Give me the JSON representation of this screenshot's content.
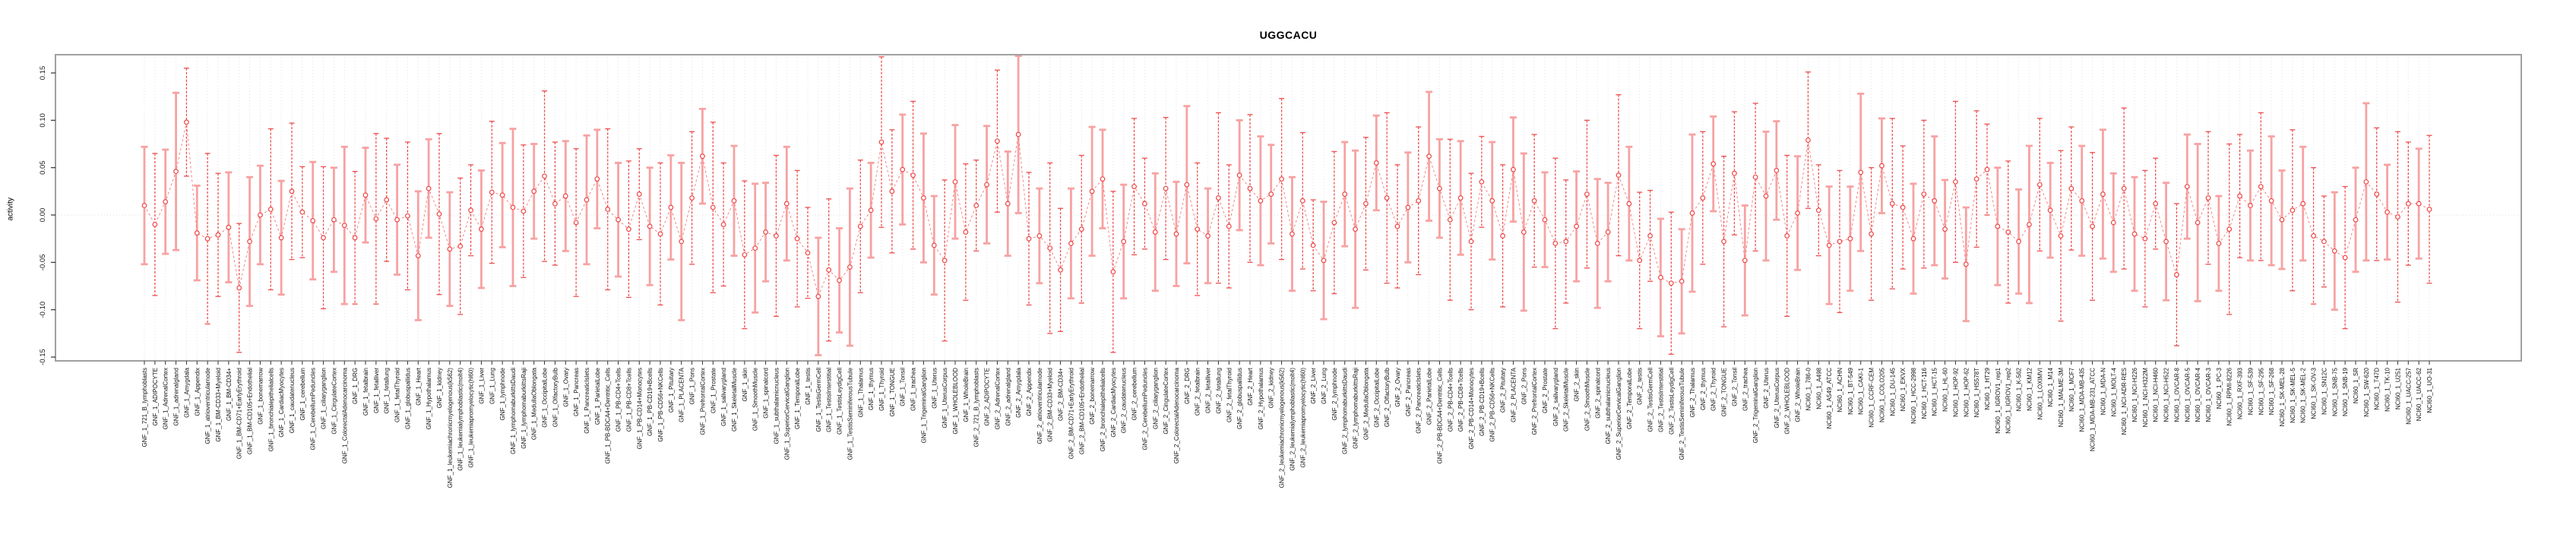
{
  "chart_data": {
    "type": "line",
    "title": "UGGCACU",
    "xlabel": "",
    "ylabel": "activity",
    "ylim": [
      -0.155,
      0.157
    ],
    "yticks": [
      -0.15,
      -0.1,
      -0.05,
      0.0,
      0.05,
      0.1,
      0.15
    ],
    "ytick_labels": [
      "-0.15",
      "-0.10",
      "-0.05",
      "0.00",
      "0.05",
      "0.10",
      "0.15"
    ],
    "grid": "vertical dotted line per category, dotted horizontal zero line",
    "legend": "none",
    "marker": "open-circle",
    "line_style": "dashed",
    "point_color": "#ef4747",
    "line_color": "#f27878",
    "errorbar_colors": {
      "dark": "#ee4f4f",
      "light": "#f7a2a2"
    },
    "errorbar_style_cycle": [
      1,
      0,
      1,
      1,
      0,
      1,
      0,
      0
    ],
    "categories": [
      "GNF_1_721_B_lymphoblasts",
      "GNF_1_ADIPOCYTE",
      "GNF_1_AdrenalCortex",
      "GNF_1_adrenalgland",
      "GNF_1_Amygdala",
      "GNF_1_Appendix",
      "GNF_1_atrioventricularnode",
      "GNF_1_BM-CD33+Myeloid",
      "GNF_1_BM-CD34+",
      "GNF_1_BM-CD71+EarlyErythroid",
      "GNF_1_BM-CD105+Endothelial",
      "GNF_1_bonemarrow",
      "GNF_1_bronchialepithelialcells",
      "GNF_1_CardiacMyocytes",
      "GNF_1_caudatenucleus",
      "GNF_1_cerebellum",
      "GNF_1_CerebellumPeduncles",
      "GNF_1_ciliaryganglion",
      "GNF_1_CingulateCortex",
      "GNF_1_ColorectalAdenocarcinoma",
      "GNF_1_DRG",
      "GNF_1_fetalbrain",
      "GNF_1_fetalliver",
      "GNF_1_fetallung",
      "GNF_1_fetalThyroid",
      "GNF_1_globuspallidus",
      "GNF_1_Heart",
      "GNF_1_Hypothalamus",
      "GNF_1_kidney",
      "GNF_1_leukemiachronicmyelogenous(k562)",
      "GNF_1_leukemialymphoblastic(molt4)",
      "GNF_1_leukemiapromyelocytic(hl60)",
      "GNF_1_Liver",
      "GNF_1_Lung",
      "GNF_1_lymphnode",
      "GNF_1_lymphomaburkittsDaudi",
      "GNF_1_lymphomaburkittsRaji",
      "GNF_1_MedullaOblongata",
      "GNF_1_OccipitalLobe",
      "GNF_1_OlfactoryBulb",
      "GNF_1_Ovary",
      "GNF_1_Pancreas",
      "GNF_1_PancreaticIslets",
      "GNF_1_ParietalLobe",
      "GNF_1_PB-BDCA4+Dentritic_Cells",
      "GNF_1_PB-CD4+Tcells",
      "GNF_1_PB-CD8+Tcells",
      "GNF_1_PB-CD14+Monocytes",
      "GNF_1_PB-CD19+Bcells",
      "GNF_1_PB-CD56+NKCells",
      "GNF_1_Pituitary",
      "GNF_1_PLACENTA",
      "GNF_1_Pons",
      "GNF_1_PrefrontalCortex",
      "GNF_1_Prostate",
      "GNF_1_salivarygland",
      "GNF_1_SkeletalMuscle",
      "GNF_1_skin",
      "GNF_1_SmoothMuscle",
      "GNF_1_spinalcord",
      "GNF_1_subthalamicnucleus",
      "GNF_1_SuperiorCervicalGanglion",
      "GNF_1_TemporalLobe",
      "GNF_1_testis",
      "GNF_1_TestisGermCell",
      "GNF_1_TestisInterstitial",
      "GNF_1_TestisLeydigCell",
      "GNF_1_TestisSeminiferousTubule",
      "GNF_1_Thalamus",
      "GNF_1_thymus",
      "GNF_1_Thyroid",
      "GNF_1_TONGUE",
      "GNF_1_Tonsil",
      "GNF_1_trachea",
      "GNF_1_TrigeminalGanglion",
      "GNF_1_Uterus",
      "GNF_1_UterusCorpus",
      "GNF_1_WHOLEBLOOD",
      "GNF_1_WholeBrain",
      "GNF_2_721_B_lymphoblasts",
      "GNF_2_ADIPOCYTE",
      "GNF_2_AdrenalCortex",
      "GNF_2_adrenalgland",
      "GNF_2_Amygdala",
      "GNF_2_Appendix",
      "GNF_2_atrioventricularnode",
      "GNF_2_BM-CD33+Myeloid",
      "GNF_2_BM-CD34+",
      "GNF_2_BM-CD71+EarlyErythroid",
      "GNF_2_BM-CD105+Endothelial",
      "GNF_2_bonemarrow",
      "GNF_2_bronchialepithelialcells",
      "GNF_2_CardiacMyocytes",
      "GNF_2_caudatenucleus",
      "GNF_2_cerebellum",
      "GNF_2_CerebellumPeduncles",
      "GNF_2_ciliaryganglion",
      "GNF_2_CingulateCortex",
      "GNF_2_ColorectalAdenocarcinoma",
      "GNF_2_DRG",
      "GNF_2_fetalbrain",
      "GNF_2_fetalliver",
      "GNF_2_fetallung",
      "GNF_2_fetalThyroid",
      "GNF_2_globuspallidus",
      "GNF_2_Heart",
      "GNF_2_Hypothalamus",
      "GNF_2_kidney",
      "GNF_2_leukemiachronicmyelogenous(k562)",
      "GNF_2_leukemialymphoblastic(molt4)",
      "GNF_2_leukemiapromyelocytic(hl60)",
      "GNF_2_Liver",
      "GNF_2_Lung",
      "GNF_2_lymphnode",
      "GNF_2_lymphomaburkittsDaudi",
      "GNF_2_lymphomaburkittsRaji",
      "GNF_2_MedullaOblongata",
      "GNF_2_OccipitalLobe",
      "GNF_2_OlfactoryBulb",
      "GNF_2_Ovary",
      "GNF_2_Pancreas",
      "GNF_2_PancreaticIslets",
      "GNF_2_ParietalLobe",
      "GNF_2_PB-BDCA4+Dentritic_Cells",
      "GNF_2_PB-CD4+Tcells",
      "GNF_2_PB-CD8+Tcells",
      "GNF_2_PB-CD14+Monocytes",
      "GNF_2_PB-CD19+Bcells",
      "GNF_2_PB-CD56+NKCells",
      "GNF_2_Pituitary",
      "GNF_2_PLACENTA",
      "GNF_2_Pons",
      "GNF_2_PrefrontalCortex",
      "GNF_2_Prostate",
      "GNF_2_salivarygland",
      "GNF_2_SkeletalMuscle",
      "GNF_2_skin",
      "GNF_2_SmoothMuscle",
      "GNF_2_spinalcord",
      "GNF_2_subthalamicnucleus",
      "GNF_2_SuperiorCervicalGanglion",
      "GNF_2_TemporalLobe",
      "GNF_2_testis",
      "GNF_2_TestisGermCell",
      "GNF_2_TestisInterstitial",
      "GNF_2_TestisLeydigCell",
      "GNF_2_TestisSeminiferousTubule",
      "GNF_2_Thalamus",
      "GNF_2_thymus",
      "GNF_2_Thyroid",
      "GNF_2_TONGUE",
      "GNF_2_Tonsil",
      "GNF_2_trachea",
      "GNF_2_TrigeminalGanglion",
      "GNF_2_Uterus",
      "GNF_2_UterusCorpus",
      "GNF_2_WHOLEBLOOD",
      "GNF_2_WholeBrain",
      "NCI60_1_786-0",
      "NCI60_1_A498",
      "NCI60_1_A549_ATCC",
      "NCI60_1_ACHN",
      "NCI60_1_BT-549",
      "NCI60_1_CAKI-1",
      "NCI60_1_CCRF-CEM",
      "NCI60_1_COLO205",
      "NCI60_1_DU-145",
      "NCI60_1_EKVX",
      "NCI60_1_HCC-2998",
      "NCI60_1_HCT-116",
      "NCI60_1_HCT-15",
      "NCI60_1_HL-60",
      "NCI60_1_HOP-92",
      "NCI60_1_HOP-62",
      "NCI60_1_HS578T",
      "NCI60_1_HT29",
      "NCI60_1_IGROV1_rep1",
      "NCI60_1_IGROV1_rep2",
      "NCI60_1_K-562",
      "NCI60_1_KM12",
      "NCI60_1_LOXIMVI",
      "NCI60_1_M14",
      "NCI60_1_MALME-3M",
      "NCI60_1_MCF7",
      "NCI60_1_MDA-MB-435",
      "NCI60_1_MDA-MB-231_ATCC",
      "NCI60_1_MDA-N",
      "NCI60_1_MOLT-4",
      "NCI60_1_NCI-ADR-RES",
      "NCI60_1_NCI-H226",
      "NCI60_1_NCI-H322M",
      "NCI60_1_NCI-H460",
      "NCI60_1_NCI-H522",
      "NCI60_1_OVCAR-8",
      "NCI60_1_OVCAR-5",
      "NCI60_1_OVCAR-4",
      "NCI60_1_OVCAR-3",
      "NCI60_1_PC-3",
      "NCI60_1_RPMI-8226",
      "NCI60_1_RXF-393",
      "NCI60_1_SF-539",
      "NCI60_1_SF-295",
      "NCI60_1_SF-268",
      "NCI60_1_SK-MEL-28",
      "NCI60_1_SK-MEL-5",
      "NCI60_1_SK-MEL-2",
      "NCI60_1_SK-OV-3",
      "NCI60_1_SN12C",
      "NCI60_1_SNB-75",
      "NCI60_1_SNB-19",
      "NCI60_1_SR",
      "NCI60_1_SW-620",
      "NCI60_1_T47D",
      "NCI60_1_TK-10",
      "NCI60_1_U251",
      "NCI60_1_UACC-257",
      "NCI60_1_UACC-62",
      "NCI60_1_UO-31"
    ],
    "series": [
      {
        "name": "activity",
        "values": [
          0.01,
          -0.01,
          0.014,
          0.046,
          0.098,
          -0.019,
          -0.025,
          -0.021,
          -0.013,
          -0.077,
          -0.028,
          0.0,
          0.006,
          -0.024,
          0.025,
          0.003,
          -0.006,
          -0.024,
          -0.005,
          -0.011,
          -0.024,
          0.021,
          -0.004,
          0.016,
          -0.005,
          -0.001,
          -0.043,
          0.028,
          0.001,
          -0.036,
          -0.033,
          0.005,
          -0.015,
          0.024,
          0.021,
          0.008,
          0.004,
          0.025,
          0.041,
          0.012,
          0.02,
          -0.008,
          0.016,
          0.038,
          0.006,
          -0.005,
          -0.015,
          0.022,
          -0.012,
          -0.02,
          0.008,
          -0.028,
          0.018,
          0.062,
          0.008,
          -0.01,
          0.015,
          -0.042,
          -0.035,
          -0.018,
          -0.022,
          0.012,
          -0.025,
          -0.04,
          -0.086,
          -0.058,
          -0.069,
          -0.055,
          -0.012,
          0.005,
          0.077,
          0.025,
          0.048,
          0.042,
          0.018,
          -0.032,
          -0.048,
          0.035,
          -0.018,
          0.01,
          0.032,
          0.078,
          0.012,
          0.085,
          -0.025,
          -0.022,
          -0.035,
          -0.058,
          -0.03,
          -0.015,
          0.025,
          0.038,
          -0.06,
          -0.028,
          0.03,
          0.012,
          -0.018,
          0.028,
          -0.02,
          0.032,
          -0.015,
          -0.022,
          0.018,
          -0.012,
          0.042,
          0.028,
          0.015,
          0.022,
          0.038,
          -0.02,
          0.015,
          -0.032,
          -0.048,
          -0.008,
          0.022,
          -0.015,
          0.012,
          0.055,
          0.018,
          -0.012,
          0.008,
          0.015,
          0.062,
          0.028,
          -0.005,
          0.018,
          -0.028,
          0.035,
          0.015,
          -0.022,
          0.048,
          -0.018,
          0.015,
          -0.005,
          -0.03,
          -0.028,
          -0.012,
          0.022,
          -0.03,
          -0.018,
          0.042,
          0.012,
          -0.048,
          -0.022,
          -0.066,
          -0.072,
          -0.07,
          0.002,
          0.018,
          0.054,
          -0.028,
          0.044,
          -0.048,
          0.04,
          0.02,
          0.047,
          -0.022,
          0.002,
          0.079,
          0.005,
          -0.032,
          -0.028,
          -0.025,
          0.045,
          -0.02,
          0.052,
          0.012,
          0.008,
          -0.025,
          0.022,
          0.015,
          -0.015,
          0.035,
          -0.052,
          0.038,
          0.048,
          -0.012,
          -0.018,
          -0.028,
          -0.01,
          0.032,
          0.005,
          -0.022,
          0.028,
          0.015,
          -0.012,
          0.022,
          -0.008,
          0.028,
          -0.02,
          -0.025,
          0.012,
          -0.028,
          -0.063,
          0.03,
          -0.008,
          0.018,
          -0.03,
          -0.015,
          0.02,
          0.01,
          0.03,
          0.015,
          -0.005,
          0.005,
          0.012,
          -0.022,
          -0.028,
          -0.038,
          -0.045,
          -0.005,
          0.035,
          0.022,
          0.003,
          -0.002,
          0.012,
          0.012,
          0.006
        ],
        "err": [
          0.062,
          0.075,
          0.055,
          0.083,
          0.057,
          0.05,
          0.09,
          0.065,
          0.058,
          0.068,
          0.068,
          0.052,
          0.085,
          0.06,
          0.072,
          0.048,
          0.062,
          0.075,
          0.055,
          0.083,
          0.07,
          0.05,
          0.09,
          0.065,
          0.058,
          0.078,
          0.068,
          0.052,
          0.085,
          0.06,
          0.072,
          0.048,
          0.062,
          0.075,
          0.055,
          0.083,
          0.07,
          0.05,
          0.09,
          0.065,
          0.058,
          0.078,
          0.068,
          0.052,
          0.085,
          0.06,
          0.072,
          0.048,
          0.062,
          0.075,
          0.055,
          0.083,
          0.07,
          0.05,
          0.09,
          0.065,
          0.058,
          0.078,
          0.068,
          0.052,
          0.085,
          0.06,
          0.072,
          0.048,
          0.062,
          0.075,
          0.055,
          0.083,
          0.07,
          0.05,
          0.09,
          0.065,
          0.058,
          0.078,
          0.068,
          0.052,
          0.085,
          0.06,
          0.072,
          0.048,
          0.062,
          0.075,
          0.055,
          0.083,
          0.07,
          0.05,
          0.09,
          0.065,
          0.058,
          0.078,
          0.068,
          0.052,
          0.085,
          0.06,
          0.072,
          0.048,
          0.062,
          0.075,
          0.055,
          0.083,
          0.07,
          0.05,
          0.09,
          0.065,
          0.058,
          0.078,
          0.068,
          0.052,
          0.085,
          0.06,
          0.072,
          0.048,
          0.062,
          0.075,
          0.055,
          0.083,
          0.07,
          0.05,
          0.09,
          0.065,
          0.058,
          0.078,
          0.068,
          0.052,
          0.085,
          0.06,
          0.072,
          0.048,
          0.062,
          0.075,
          0.055,
          0.083,
          0.07,
          0.05,
          0.09,
          0.065,
          0.058,
          0.078,
          0.068,
          0.052,
          0.085,
          0.06,
          0.072,
          0.048,
          0.062,
          0.075,
          0.055,
          0.083,
          0.07,
          0.05,
          0.09,
          0.065,
          0.058,
          0.078,
          0.068,
          0.052,
          0.085,
          0.06,
          0.072,
          0.048,
          0.062,
          0.075,
          0.055,
          0.083,
          0.07,
          0.05,
          0.09,
          0.065,
          0.058,
          0.078,
          0.068,
          0.052,
          0.085,
          0.06,
          0.072,
          0.048,
          0.062,
          0.075,
          0.055,
          0.083,
          0.07,
          0.05,
          0.09,
          0.065,
          0.058,
          0.078,
          0.068,
          0.052,
          0.085,
          0.06,
          0.072,
          0.048,
          0.062,
          0.075,
          0.055,
          0.083,
          0.07,
          0.05,
          0.09,
          0.065,
          0.058,
          0.078,
          0.068,
          0.052,
          0.085,
          0.06,
          0.072,
          0.048,
          0.062,
          0.075,
          0.055,
          0.083,
          0.07,
          0.05,
          0.09,
          0.065,
          0.058,
          0.078
        ]
      }
    ]
  }
}
